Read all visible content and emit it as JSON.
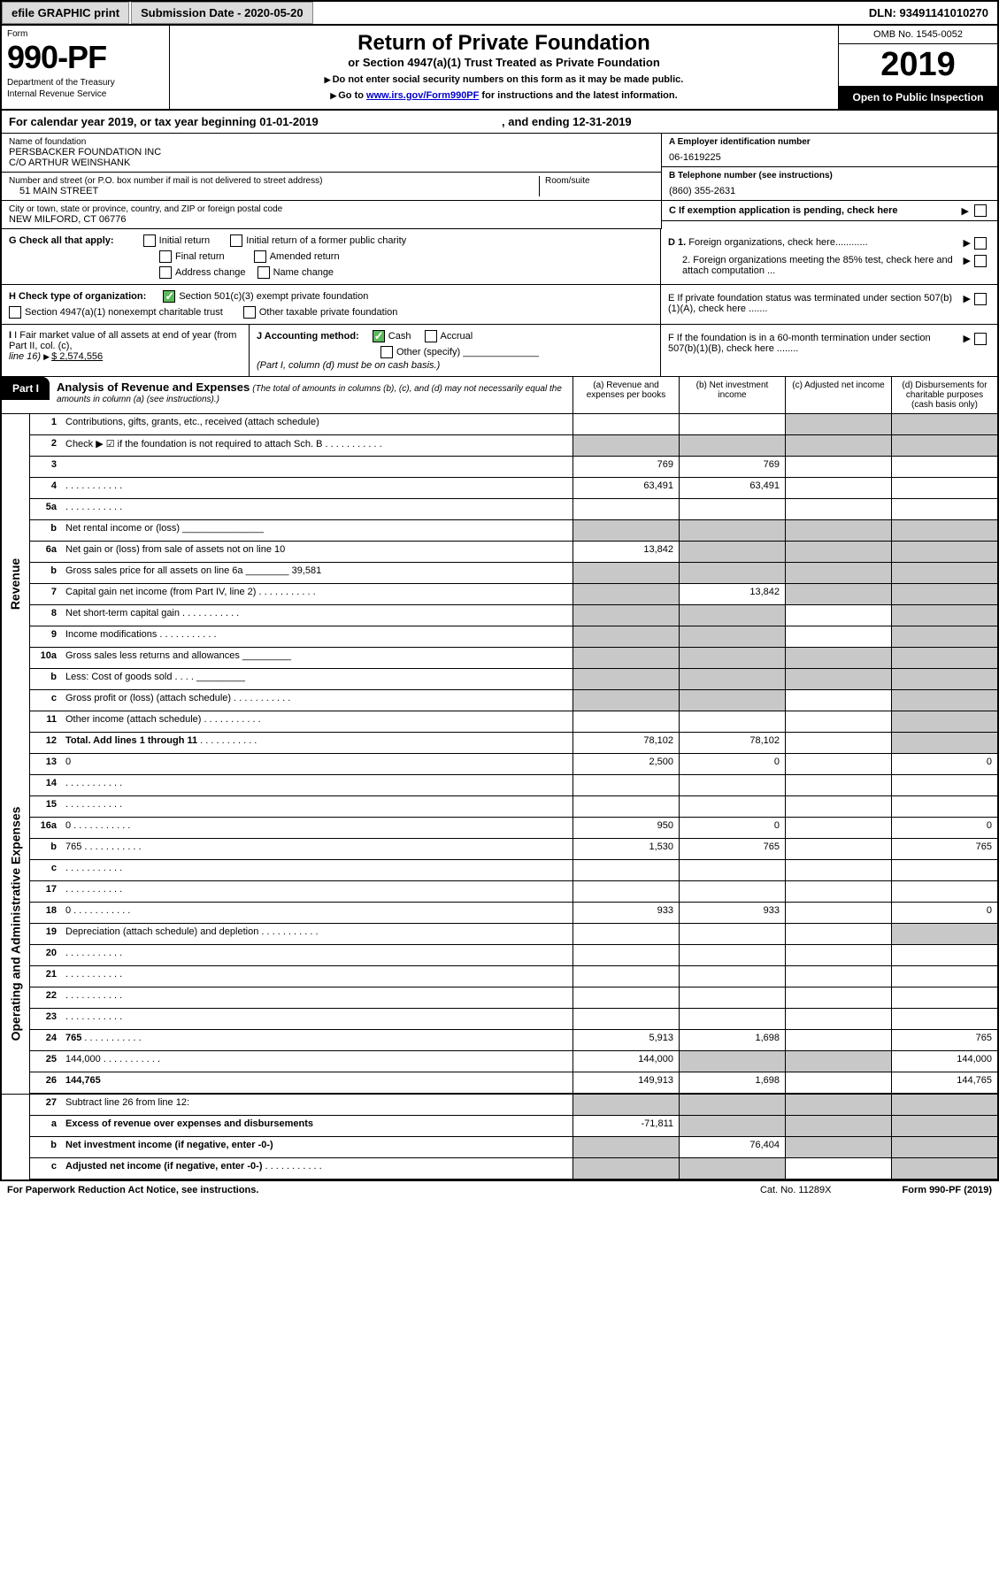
{
  "topbar": {
    "efile": "efile GRAPHIC print",
    "submission": "Submission Date - 2020-05-20",
    "dln": "DLN: 93491141010270"
  },
  "header": {
    "form_word": "Form",
    "form_num": "990-PF",
    "dept": "Department of the Treasury",
    "irs": "Internal Revenue Service",
    "title": "Return of Private Foundation",
    "subtitle": "or Section 4947(a)(1) Trust Treated as Private Foundation",
    "instr1": "Do not enter social security numbers on this form as it may be made public.",
    "instr2_pre": "Go to ",
    "instr2_link": "www.irs.gov/Form990PF",
    "instr2_post": " for instructions and the latest information.",
    "omb": "OMB No. 1545-0052",
    "year": "2019",
    "open": "Open to Public Inspection"
  },
  "calyear": {
    "pre": "For calendar year 2019, or tax year beginning ",
    "begin": "01-01-2019",
    "mid": " , and ending ",
    "end": "12-31-2019"
  },
  "id": {
    "name_lbl": "Name of foundation",
    "name1": "PERSBACKER FOUNDATION INC",
    "name2": "C/O ARTHUR WEINSHANK",
    "addr_lbl": "Number and street (or P.O. box number if mail is not delivered to street address)",
    "addr": "51 MAIN STREET",
    "room_lbl": "Room/suite",
    "city_lbl": "City or town, state or province, country, and ZIP or foreign postal code",
    "city": "NEW MILFORD, CT  06776",
    "a_lbl": "A Employer identification number",
    "a_val": "06-1619225",
    "b_lbl": "B Telephone number (see instructions)",
    "b_val": "(860) 355-2631",
    "c_lbl": "C If exemption application is pending, check here"
  },
  "g": {
    "lbl": "G Check all that apply:",
    "opts": [
      "Initial return",
      "Initial return of a former public charity",
      "Final return",
      "Amended return",
      "Address change",
      "Name change"
    ]
  },
  "d": {
    "d1": "D 1. Foreign organizations, check here............",
    "d2": "2. Foreign organizations meeting the 85% test, check here and attach computation ...",
    "e": "E  If private foundation status was terminated under section 507(b)(1)(A), check here .......",
    "f": "F  If the foundation is in a 60-month termination under section 507(b)(1)(B), check here ........"
  },
  "h": {
    "lbl": "H Check type of organization:",
    "opt1": "Section 501(c)(3) exempt private foundation",
    "opt2": "Section 4947(a)(1) nonexempt charitable trust",
    "opt3": "Other taxable private foundation"
  },
  "i": {
    "lbl": "I Fair market value of all assets at end of year (from Part II, col. (c),",
    "line16": "line 16)",
    "val": "$  2,574,556"
  },
  "j": {
    "lbl": "J Accounting method:",
    "cash": "Cash",
    "accrual": "Accrual",
    "other": "Other (specify)",
    "note": "(Part I, column (d) must be on cash basis.)"
  },
  "part1": {
    "tab": "Part I",
    "title": "Analysis of Revenue and Expenses",
    "note": "(The total of amounts in columns (b), (c), and (d) may not necessarily equal the amounts in column (a) (see instructions).)",
    "colA": "(a)   Revenue and expenses per books",
    "colB": "(b)  Net investment income",
    "colC": "(c)  Adjusted net income",
    "colD": "(d)  Disbursements for charitable purposes (cash basis only)"
  },
  "sidebars": {
    "rev": "Revenue",
    "exp": "Operating and Administrative Expenses"
  },
  "lines": [
    {
      "n": "1",
      "d": "Contributions, gifts, grants, etc., received (attach schedule)",
      "a": "",
      "b": "",
      "greyC": true,
      "greyD": true
    },
    {
      "n": "2",
      "d": "Check ▶ ☑ if the foundation is not required to attach Sch. B",
      "dots": true,
      "greyA": true,
      "greyB": true,
      "greyC": true,
      "greyD": true
    },
    {
      "n": "3",
      "d": "",
      "a": "769",
      "b": "769",
      "c": ""
    },
    {
      "n": "4",
      "d": "",
      "dots": true,
      "a": "63,491",
      "b": "63,491",
      "c": ""
    },
    {
      "n": "5a",
      "d": "",
      "dots": true,
      "a": "",
      "b": "",
      "c": ""
    },
    {
      "n": "b",
      "d": "Net rental income or (loss)  _______________",
      "greyA": true,
      "greyB": true,
      "greyC": true,
      "greyD": true
    },
    {
      "n": "6a",
      "d": "Net gain or (loss) from sale of assets not on line 10",
      "a": "13,842",
      "greyB": true,
      "greyC": true,
      "greyD": true
    },
    {
      "n": "b",
      "d": "Gross sales price for all assets on line 6a ________ 39,581",
      "greyA": true,
      "greyB": true,
      "greyC": true,
      "greyD": true
    },
    {
      "n": "7",
      "d": "Capital gain net income (from Part IV, line 2)",
      "dots": true,
      "greyA": true,
      "b": "13,842",
      "greyC": true,
      "greyD": true
    },
    {
      "n": "8",
      "d": "Net short-term capital gain",
      "dots": true,
      "greyA": true,
      "greyB": true,
      "c": "",
      "greyD": true
    },
    {
      "n": "9",
      "d": "Income modifications",
      "dots": true,
      "greyA": true,
      "greyB": true,
      "c": "",
      "greyD": true
    },
    {
      "n": "10a",
      "d": "Gross sales less returns and allowances   _________",
      "greyA": true,
      "greyB": true,
      "greyC": true,
      "greyD": true
    },
    {
      "n": "b",
      "d": "Less: Cost of goods sold   .  .  .  .  _________",
      "greyA": true,
      "greyB": true,
      "greyC": true,
      "greyD": true
    },
    {
      "n": "c",
      "d": "Gross profit or (loss) (attach schedule)",
      "dots": true,
      "greyA": true,
      "greyB": true,
      "c": "",
      "greyD": true
    },
    {
      "n": "11",
      "d": "Other income (attach schedule)",
      "dots": true,
      "a": "",
      "b": "",
      "c": "",
      "greyD": true
    },
    {
      "n": "12",
      "d": "Total. Add lines 1 through 11",
      "dots": true,
      "bold": true,
      "a": "78,102",
      "b": "78,102",
      "c": "",
      "greyD": true
    }
  ],
  "exp_lines": [
    {
      "n": "13",
      "d": "0",
      "a": "2,500",
      "b": "0",
      "c": ""
    },
    {
      "n": "14",
      "d": "",
      "dots": true,
      "a": "",
      "b": "",
      "c": ""
    },
    {
      "n": "15",
      "d": "",
      "dots": true,
      "a": "",
      "b": "",
      "c": ""
    },
    {
      "n": "16a",
      "d": "0",
      "dots": true,
      "a": "950",
      "b": "0",
      "c": ""
    },
    {
      "n": "b",
      "d": "765",
      "dots": true,
      "a": "1,530",
      "b": "765",
      "c": ""
    },
    {
      "n": "c",
      "d": "",
      "dots": true,
      "a": "",
      "b": "",
      "c": ""
    },
    {
      "n": "17",
      "d": "",
      "dots": true,
      "a": "",
      "b": "",
      "c": ""
    },
    {
      "n": "18",
      "d": "0",
      "dots": true,
      "a": "933",
      "b": "933",
      "c": ""
    },
    {
      "n": "19",
      "d": "Depreciation (attach schedule) and depletion",
      "dots": true,
      "a": "",
      "b": "",
      "c": "",
      "greyD": true
    },
    {
      "n": "20",
      "d": "",
      "dots": true,
      "a": "",
      "b": "",
      "c": ""
    },
    {
      "n": "21",
      "d": "",
      "dots": true,
      "a": "",
      "b": "",
      "c": ""
    },
    {
      "n": "22",
      "d": "",
      "dots": true,
      "a": "",
      "b": "",
      "c": ""
    },
    {
      "n": "23",
      "d": "",
      "dots": true,
      "a": "",
      "b": "",
      "c": ""
    },
    {
      "n": "24",
      "d": "765",
      "dots": true,
      "bold": true,
      "a": "5,913",
      "b": "1,698",
      "c": ""
    },
    {
      "n": "25",
      "d": "144,000",
      "dots": true,
      "a": "144,000",
      "greyB": true,
      "greyC": true
    },
    {
      "n": "26",
      "d": "144,765",
      "bold": true,
      "a": "149,913",
      "b": "1,698",
      "c": ""
    }
  ],
  "summary_lines": [
    {
      "n": "27",
      "d": "Subtract line 26 from line 12:",
      "greyA": true,
      "greyB": true,
      "greyC": true,
      "greyD": true
    },
    {
      "n": "a",
      "d": "Excess of revenue over expenses and disbursements",
      "bold": true,
      "a": "-71,811",
      "greyB": true,
      "greyC": true,
      "greyD": true
    },
    {
      "n": "b",
      "d": "Net investment income (if negative, enter -0-)",
      "bold": true,
      "greyA": true,
      "b": "76,404",
      "greyC": true,
      "greyD": true
    },
    {
      "n": "c",
      "d": "Adjusted net income (if negative, enter -0-)",
      "dots": true,
      "bold": true,
      "greyA": true,
      "greyB": true,
      "c": "",
      "greyD": true
    }
  ],
  "footer": {
    "pra": "For Paperwork Reduction Act Notice, see instructions.",
    "cat": "Cat. No. 11289X",
    "form": "Form 990-PF (2019)"
  }
}
